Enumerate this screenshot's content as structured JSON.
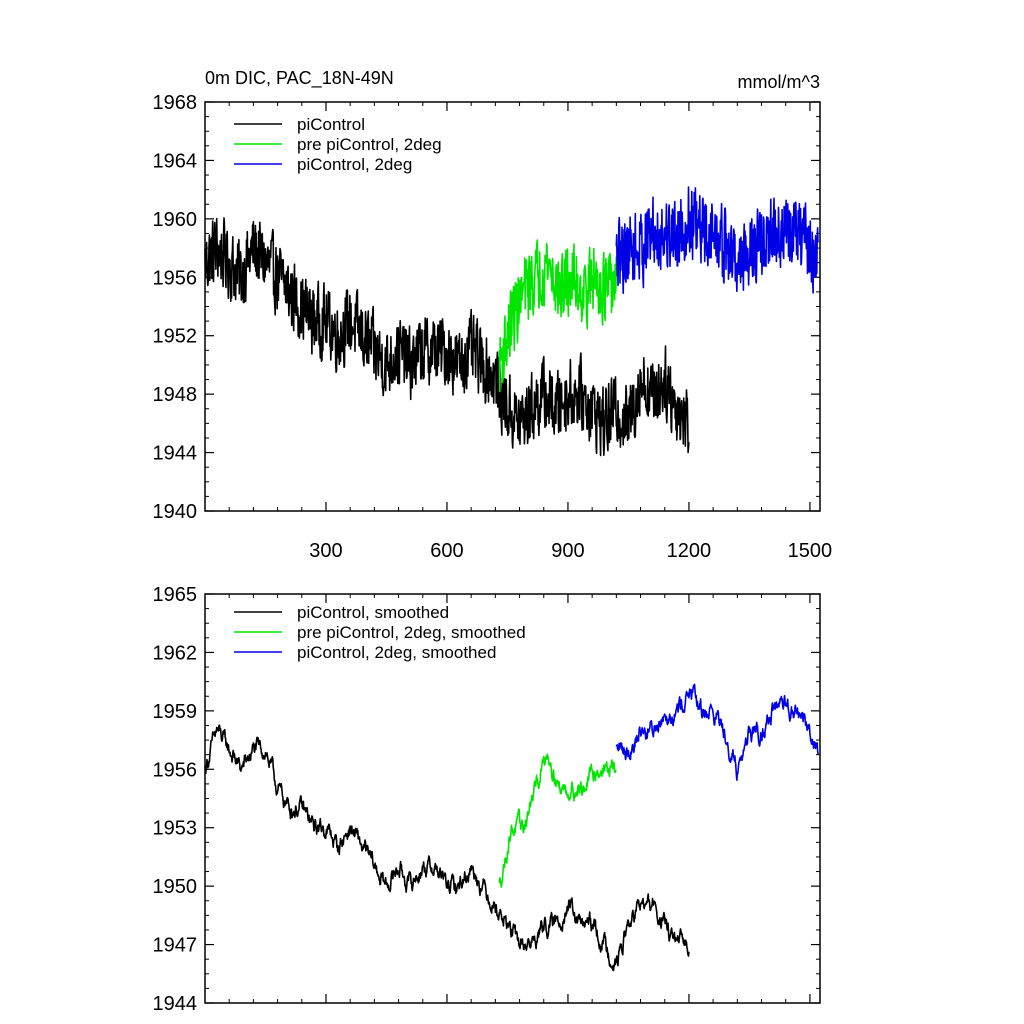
{
  "chart_data": [
    {
      "type": "line",
      "title": "0m DIC, PAC_18N-49N",
      "units": "mmol/m^3",
      "xlim": [
        0,
        1525
      ],
      "ylim": [
        1940,
        1968
      ],
      "x_ticks": [
        300,
        600,
        900,
        1200,
        1500
      ],
      "y_ticks": [
        1940,
        1944,
        1948,
        1952,
        1956,
        1960,
        1964,
        1968
      ],
      "legend_position": "top-left",
      "series": [
        {
          "name": "piControl",
          "color": "#000000",
          "x": [
            0,
            30,
            60,
            90,
            120,
            150,
            180,
            210,
            240,
            270,
            300,
            330,
            360,
            390,
            420,
            450,
            480,
            510,
            540,
            570,
            600,
            630,
            660,
            690,
            720,
            750,
            780,
            810,
            840,
            870,
            900,
            930,
            960,
            990,
            1020,
            1050,
            1080,
            1110,
            1140,
            1170,
            1200
          ],
          "y": [
            1957,
            1958,
            1957,
            1956,
            1958,
            1957,
            1956,
            1955,
            1954,
            1953,
            1953,
            1952,
            1953,
            1952,
            1951,
            1950,
            1951,
            1950,
            1951,
            1951,
            1951,
            1950,
            1951,
            1950,
            1949,
            1947,
            1946,
            1947,
            1948,
            1947,
            1948,
            1948,
            1947,
            1946,
            1947,
            1946,
            1949,
            1948,
            1949,
            1947,
            1946
          ],
          "noise": 3.0
        },
        {
          "name": "pre piControl, 2deg",
          "color": "#00e600",
          "x": [
            730,
            760,
            790,
            820,
            850,
            880,
            910,
            940,
            970,
            1000,
            1020
          ],
          "y": [
            1950,
            1953,
            1955,
            1956,
            1957,
            1955,
            1956,
            1955,
            1956,
            1955,
            1956
          ],
          "noise": 3.0
        },
        {
          "name": "piControl, 2deg",
          "color": "#0000e6",
          "x": [
            1020,
            1050,
            1080,
            1110,
            1140,
            1170,
            1200,
            1230,
            1260,
            1290,
            1320,
            1350,
            1380,
            1410,
            1440,
            1470,
            1500,
            1520
          ],
          "y": [
            1957,
            1958,
            1958,
            1959,
            1959,
            1959,
            1960,
            1959,
            1959,
            1958,
            1957,
            1958,
            1958,
            1959,
            1959,
            1959,
            1958,
            1957
          ],
          "noise": 3.2
        }
      ]
    },
    {
      "type": "line",
      "xlim": [
        0,
        1525
      ],
      "ylim": [
        1944,
        1965
      ],
      "x_ticks": [
        300,
        600,
        900,
        1200,
        1500
      ],
      "y_ticks": [
        1944,
        1947,
        1950,
        1953,
        1956,
        1959,
        1962,
        1965
      ],
      "legend_position": "top-left",
      "series": [
        {
          "name": "piControl, smoothed",
          "color": "#000000",
          "x": [
            0,
            30,
            60,
            90,
            120,
            150,
            180,
            210,
            240,
            270,
            300,
            330,
            360,
            390,
            420,
            450,
            480,
            510,
            540,
            570,
            600,
            630,
            660,
            690,
            720,
            750,
            780,
            810,
            840,
            870,
            900,
            930,
            960,
            990,
            1020,
            1050,
            1080,
            1110,
            1140,
            1170,
            1200
          ],
          "y": [
            1956,
            1958,
            1957,
            1956,
            1957,
            1957,
            1955,
            1954,
            1954,
            1953,
            1953,
            1952,
            1953,
            1952,
            1951,
            1950,
            1951,
            1950,
            1951,
            1951,
            1950,
            1950,
            1951,
            1950,
            1949,
            1948,
            1947,
            1947,
            1948,
            1948,
            1949,
            1948,
            1948,
            1947,
            1946,
            1948,
            1949,
            1949,
            1948,
            1947,
            1947
          ],
          "noise": 1.5
        },
        {
          "name": "pre piControl, 2deg, smoothed",
          "color": "#00e600",
          "x": [
            730,
            760,
            790,
            820,
            850,
            880,
            910,
            940,
            970,
            1000,
            1020
          ],
          "y": [
            1950,
            1953,
            1953,
            1955,
            1957,
            1955,
            1955,
            1955,
            1956,
            1956,
            1956
          ],
          "noise": 1.5
        },
        {
          "name": "piControl, 2deg, smoothed",
          "color": "#0000e6",
          "x": [
            1020,
            1050,
            1080,
            1110,
            1140,
            1170,
            1200,
            1230,
            1260,
            1290,
            1320,
            1350,
            1380,
            1410,
            1440,
            1470,
            1500,
            1520
          ],
          "y": [
            1957,
            1957,
            1958,
            1958,
            1959,
            1959,
            1960,
            1959,
            1959,
            1958,
            1956,
            1958,
            1958,
            1959,
            1959,
            1959,
            1958,
            1957
          ],
          "noise": 1.6
        }
      ]
    }
  ]
}
